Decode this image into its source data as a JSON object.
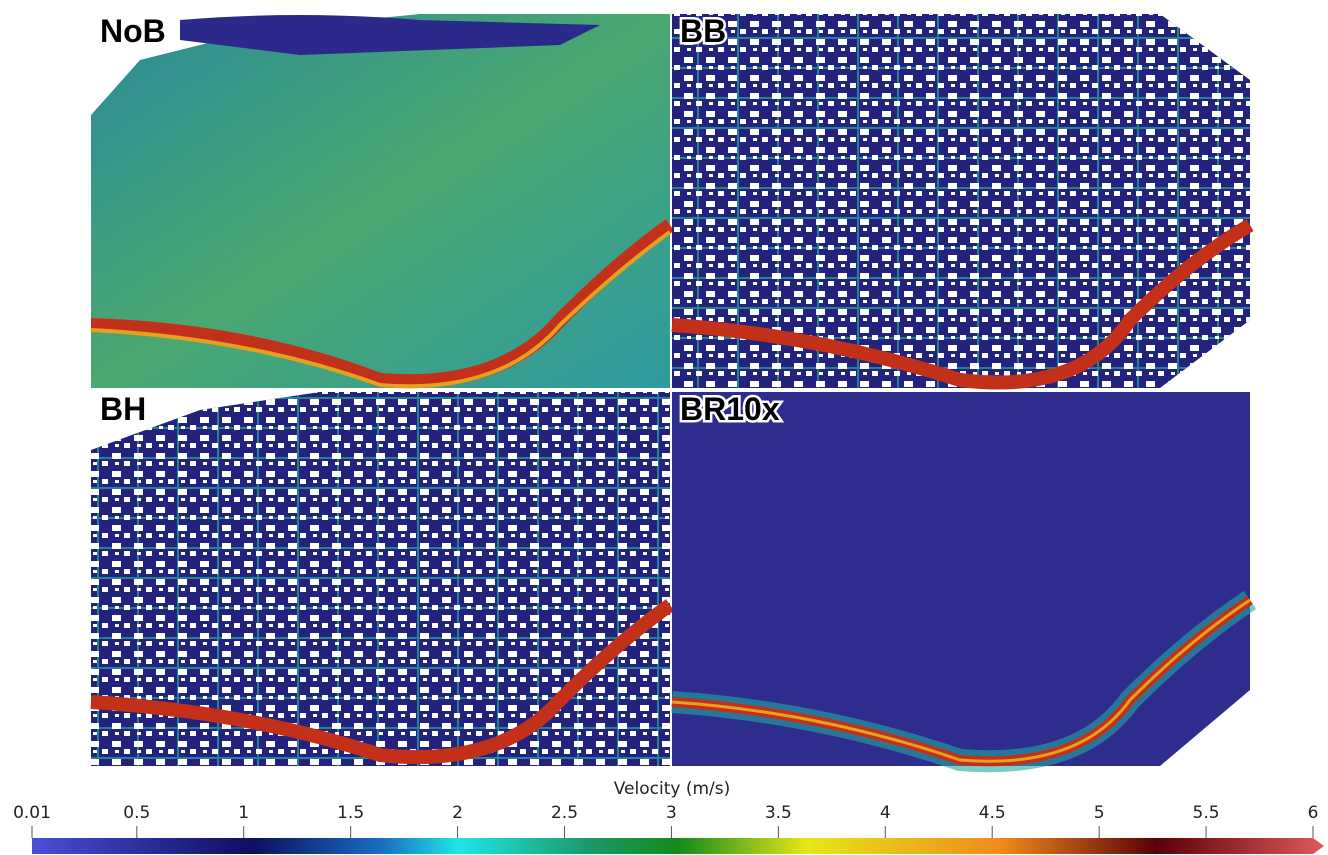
{
  "panels": [
    {
      "label": "NoB"
    },
    {
      "label": "BB"
    },
    {
      "label": "BH"
    },
    {
      "label": "BR10x"
    }
  ],
  "colorbar": {
    "title": "Velocity (m/s)",
    "range": [
      0.01,
      6
    ],
    "ticks": [
      0.01,
      0.5,
      1,
      1.5,
      2,
      2.5,
      3,
      3.5,
      4,
      4.5,
      5,
      5.5,
      6
    ]
  }
}
